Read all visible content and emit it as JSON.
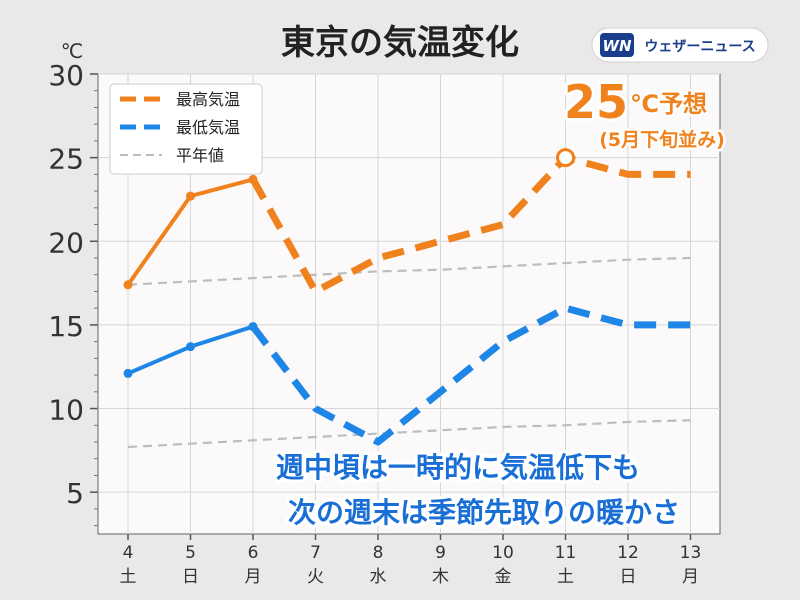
{
  "header": {
    "title": "東京の気温変化",
    "unit": "℃",
    "brand_mark": "WN",
    "brand_name": "ウェザーニュース"
  },
  "callouts": {
    "forecast_big": "25",
    "forecast_unit": "℃予想",
    "forecast_note": "(5月下旬並み)",
    "message_line1": "週中頃は一時的に気温低下も",
    "message_line2": "次の週末は季節先取りの暖かさ"
  },
  "colors": {
    "high": "#f0821e",
    "low": "#1e86e6",
    "normal": "#bdbdbd",
    "weekday": "#333333",
    "saturday": "#1e86e6",
    "sunday": "#e03030",
    "message_text": "#1a6fd6",
    "plot_bg": "#fbf9fa"
  },
  "chart_data": {
    "type": "line",
    "title": "東京の気温変化",
    "ylabel": "℃",
    "ylim": [
      2.5,
      30
    ],
    "yticks": [
      5,
      10,
      15,
      20,
      25,
      30
    ],
    "grid": true,
    "legend_position": "top-left",
    "categories": [
      {
        "day": "4",
        "weekday": "土",
        "kind": "saturday"
      },
      {
        "day": "5",
        "weekday": "日",
        "kind": "sunday"
      },
      {
        "day": "6",
        "weekday": "月",
        "kind": "weekday"
      },
      {
        "day": "7",
        "weekday": "火",
        "kind": "weekday"
      },
      {
        "day": "8",
        "weekday": "水",
        "kind": "weekday"
      },
      {
        "day": "9",
        "weekday": "木",
        "kind": "weekday"
      },
      {
        "day": "10",
        "weekday": "金",
        "kind": "weekday"
      },
      {
        "day": "11",
        "weekday": "土",
        "kind": "saturday"
      },
      {
        "day": "12",
        "weekday": "日",
        "kind": "sunday"
      },
      {
        "day": "13",
        "weekday": "月",
        "kind": "weekday"
      }
    ],
    "observed_count": 3,
    "series": [
      {
        "name": "最高気温",
        "key": "high",
        "values": [
          17.4,
          22.7,
          23.7,
          17.0,
          19.0,
          20.0,
          21.0,
          25.0,
          24.0,
          24.0
        ]
      },
      {
        "name": "最低気温",
        "key": "low",
        "values": [
          12.1,
          13.7,
          14.9,
          10.0,
          8.0,
          11.0,
          14.0,
          16.0,
          15.0,
          15.0
        ]
      }
    ],
    "normals": [
      {
        "name": "平年値",
        "key": "normal_high",
        "values": [
          17.4,
          17.6,
          17.8,
          18.0,
          18.2,
          18.3,
          18.5,
          18.7,
          18.9,
          19.0
        ]
      },
      {
        "key": "normal_low",
        "values": [
          7.7,
          7.9,
          8.1,
          8.3,
          8.5,
          8.7,
          8.9,
          9.0,
          9.2,
          9.3
        ]
      }
    ],
    "highlight": {
      "series": "high",
      "index": 7
    }
  }
}
